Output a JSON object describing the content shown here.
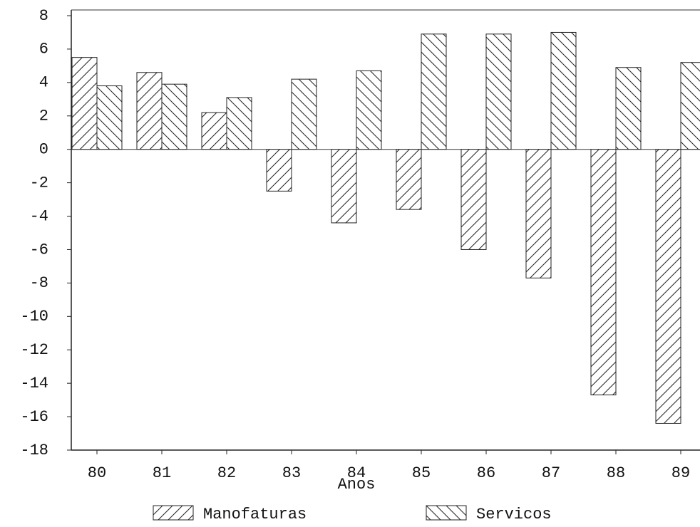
{
  "chart_data": {
    "type": "bar",
    "x_label": "Anos",
    "categories": [
      "80",
      "81",
      "82",
      "83",
      "84",
      "85",
      "86",
      "87",
      "88",
      "89"
    ],
    "series": [
      {
        "name": "Manofaturas",
        "color": "#222222",
        "hatch": "/",
        "values": [
          5.5,
          4.6,
          2.2,
          -2.5,
          -4.4,
          -3.6,
          -6.0,
          -7.7,
          -14.7,
          -16.4
        ]
      },
      {
        "name": "Servicos",
        "color": "#222222",
        "hatch": "\\",
        "values": [
          3.8,
          3.9,
          3.1,
          4.2,
          4.7,
          6.9,
          6.9,
          7.0,
          4.9,
          5.2
        ]
      }
    ],
    "ylim": [
      -18,
      8
    ],
    "yticks": [
      -18,
      -16,
      -14,
      -12,
      -10,
      -8,
      -6,
      -4,
      -2,
      0,
      2,
      4,
      6,
      8
    ],
    "grid": false,
    "legend": "bottom"
  }
}
